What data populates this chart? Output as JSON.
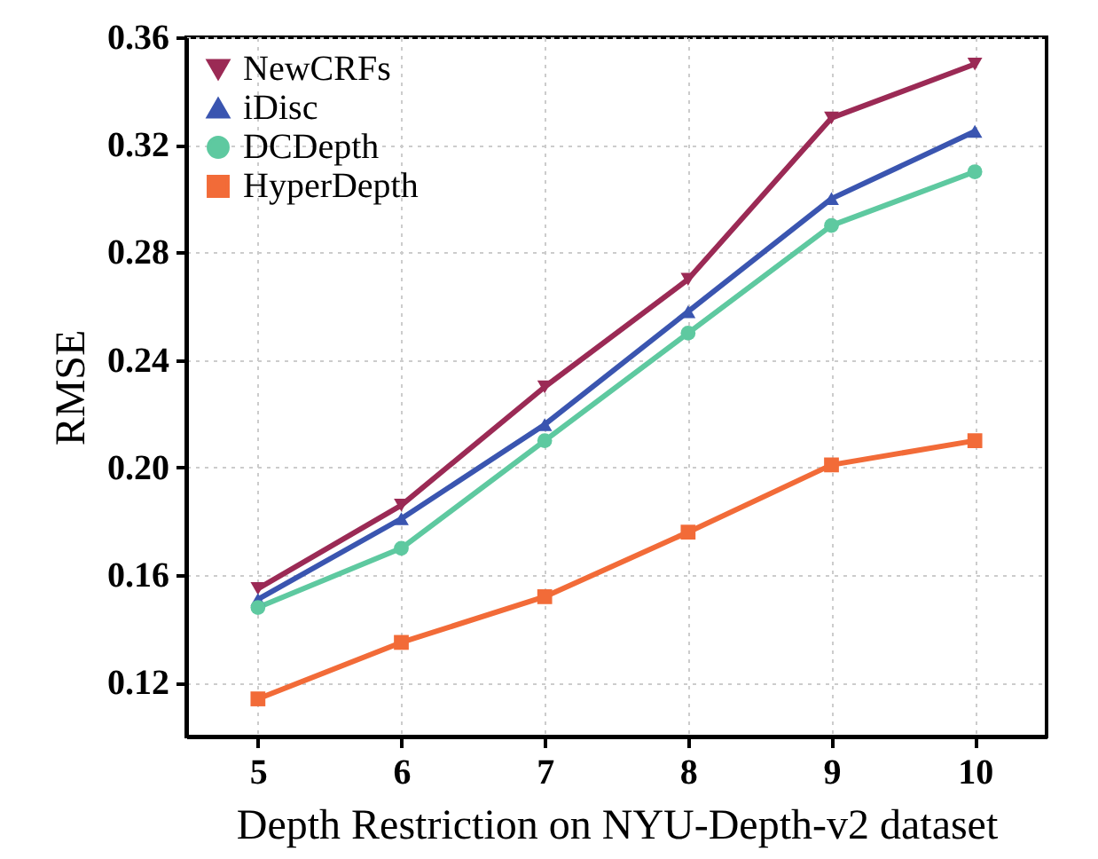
{
  "chart_data": {
    "type": "line",
    "xlabel": "Depth Restriction on NYU-Depth-v2 dataset",
    "ylabel": "RMSE",
    "x": [
      5,
      6,
      7,
      8,
      9,
      10
    ],
    "series": [
      {
        "name": "NewCRFs",
        "color": "#9b2a55",
        "marker": "triangle-down",
        "values": [
          0.155,
          0.186,
          0.23,
          0.27,
          0.33,
          0.35
        ]
      },
      {
        "name": "iDisc",
        "color": "#3a55b0",
        "marker": "triangle",
        "values": [
          0.151,
          0.181,
          0.216,
          0.258,
          0.3,
          0.325
        ]
      },
      {
        "name": "DCDepth",
        "color": "#5ec9a0",
        "marker": "circle",
        "values": [
          0.148,
          0.17,
          0.21,
          0.25,
          0.29,
          0.31
        ]
      },
      {
        "name": "HyperDepth",
        "color": "#f26b38",
        "marker": "square",
        "values": [
          0.114,
          0.135,
          0.152,
          0.176,
          0.201,
          0.21
        ]
      }
    ],
    "xlim": [
      4.5,
      10.5
    ],
    "xticks": [
      5,
      6,
      7,
      8,
      9,
      10
    ],
    "ylim": [
      0.1,
      0.36
    ],
    "yticks": [
      0.12,
      0.16,
      {
        "value": 0.2,
        "label": "0.20"
      },
      0.24,
      0.28,
      0.32,
      0.36
    ],
    "grid": true,
    "legend": "top left",
    "line_style": "solid"
  }
}
